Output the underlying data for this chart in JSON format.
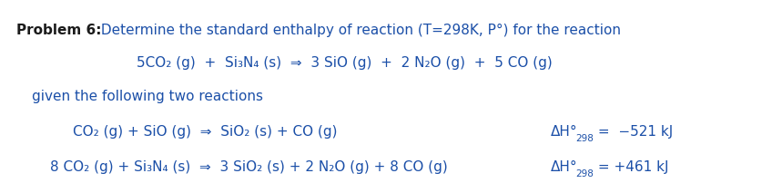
{
  "background_color": "#ffffff",
  "fig_width": 8.48,
  "fig_height": 2.03,
  "dpi": 100,
  "line1_bold": "Problem 6:",
  "line1_normal": " Determine the standard enthalpy of reaction (T=298K, P°) for the reaction",
  "line2": "5CO₂ (g)  +  Si₃N₄ (s)  ⇒  3 SiO (g)  +  2 N₂O (g)  +  5 CO (g)",
  "line3": "given the following two reactions",
  "line4_reaction": "CO₂ (g) + SiO (g)  ⇒  SiO₂ (s) + CO (g)",
  "line4_enthalpy_prefix": "ΔH°",
  "line4_enthalpy_sub": "298",
  "line4_enthalpy_suffix": " =  −521 kJ",
  "line5_reaction": "8 CO₂ (g) + Si₃N₄ (s)  ⇒  3 SiO₂ (s) + 2 N₂O (g) + 8 CO (g)",
  "line5_enthalpy_prefix": "ΔH°",
  "line5_enthalpy_sub": "298",
  "line5_enthalpy_suffix": " = +461 kJ",
  "font_color": "#1b4fa8",
  "bold_color": "#1b1b1b",
  "font_family": "Arial Narrow",
  "font_size": 11,
  "bold_size": 11
}
